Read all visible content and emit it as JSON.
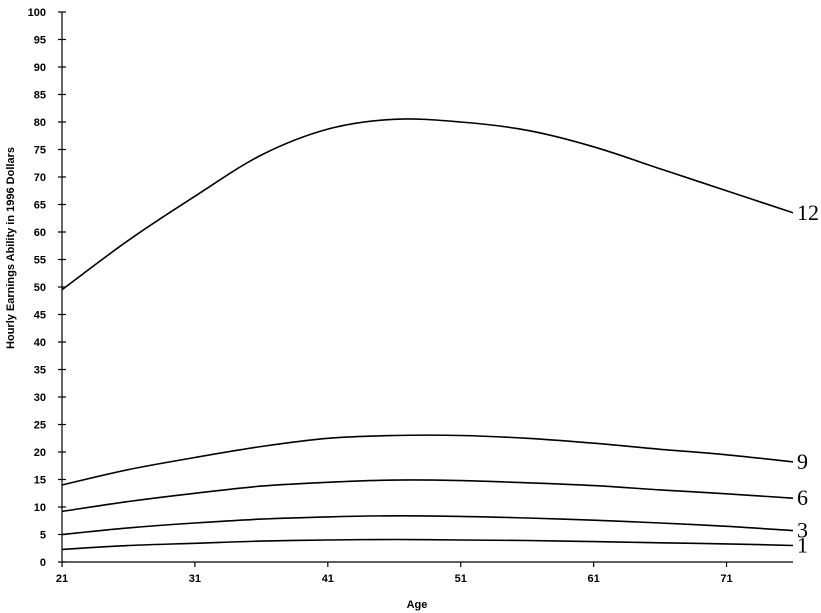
{
  "chart_data": {
    "type": "line",
    "title": "",
    "xlabel": "Age",
    "ylabel": "Hourly Earnings Ability in 1996 Dollars",
    "xlim": [
      21,
      76
    ],
    "ylim": [
      0,
      100
    ],
    "x_ticks": [
      21,
      31,
      41,
      51,
      61,
      71
    ],
    "y_ticks": [
      0,
      5,
      10,
      15,
      20,
      25,
      30,
      35,
      40,
      45,
      50,
      55,
      60,
      65,
      70,
      75,
      80,
      85,
      90,
      95,
      100
    ],
    "x": [
      21,
      26,
      31,
      36,
      41,
      46,
      51,
      56,
      61,
      66,
      71,
      76
    ],
    "series": [
      {
        "name": "1",
        "values": [
          2.3,
          3.0,
          3.4,
          3.8,
          4.0,
          4.1,
          4.0,
          3.9,
          3.7,
          3.5,
          3.3,
          3.0
        ]
      },
      {
        "name": "3",
        "values": [
          5.0,
          6.2,
          7.1,
          7.8,
          8.2,
          8.4,
          8.3,
          8.0,
          7.6,
          7.1,
          6.5,
          5.7
        ]
      },
      {
        "name": "6",
        "values": [
          9.2,
          11.0,
          12.5,
          13.8,
          14.5,
          14.9,
          14.8,
          14.4,
          13.9,
          13.1,
          12.4,
          11.6
        ]
      },
      {
        "name": "9",
        "values": [
          14.0,
          16.8,
          19.0,
          21.0,
          22.5,
          23.0,
          23.0,
          22.5,
          21.6,
          20.5,
          19.5,
          18.2
        ]
      },
      {
        "name": "12",
        "values": [
          49.5,
          58.5,
          66.5,
          74.0,
          78.7,
          80.5,
          80.0,
          78.5,
          75.5,
          71.5,
          67.5,
          63.5
        ]
      }
    ],
    "grid": false,
    "legend": "none (series labels at line ends)"
  }
}
